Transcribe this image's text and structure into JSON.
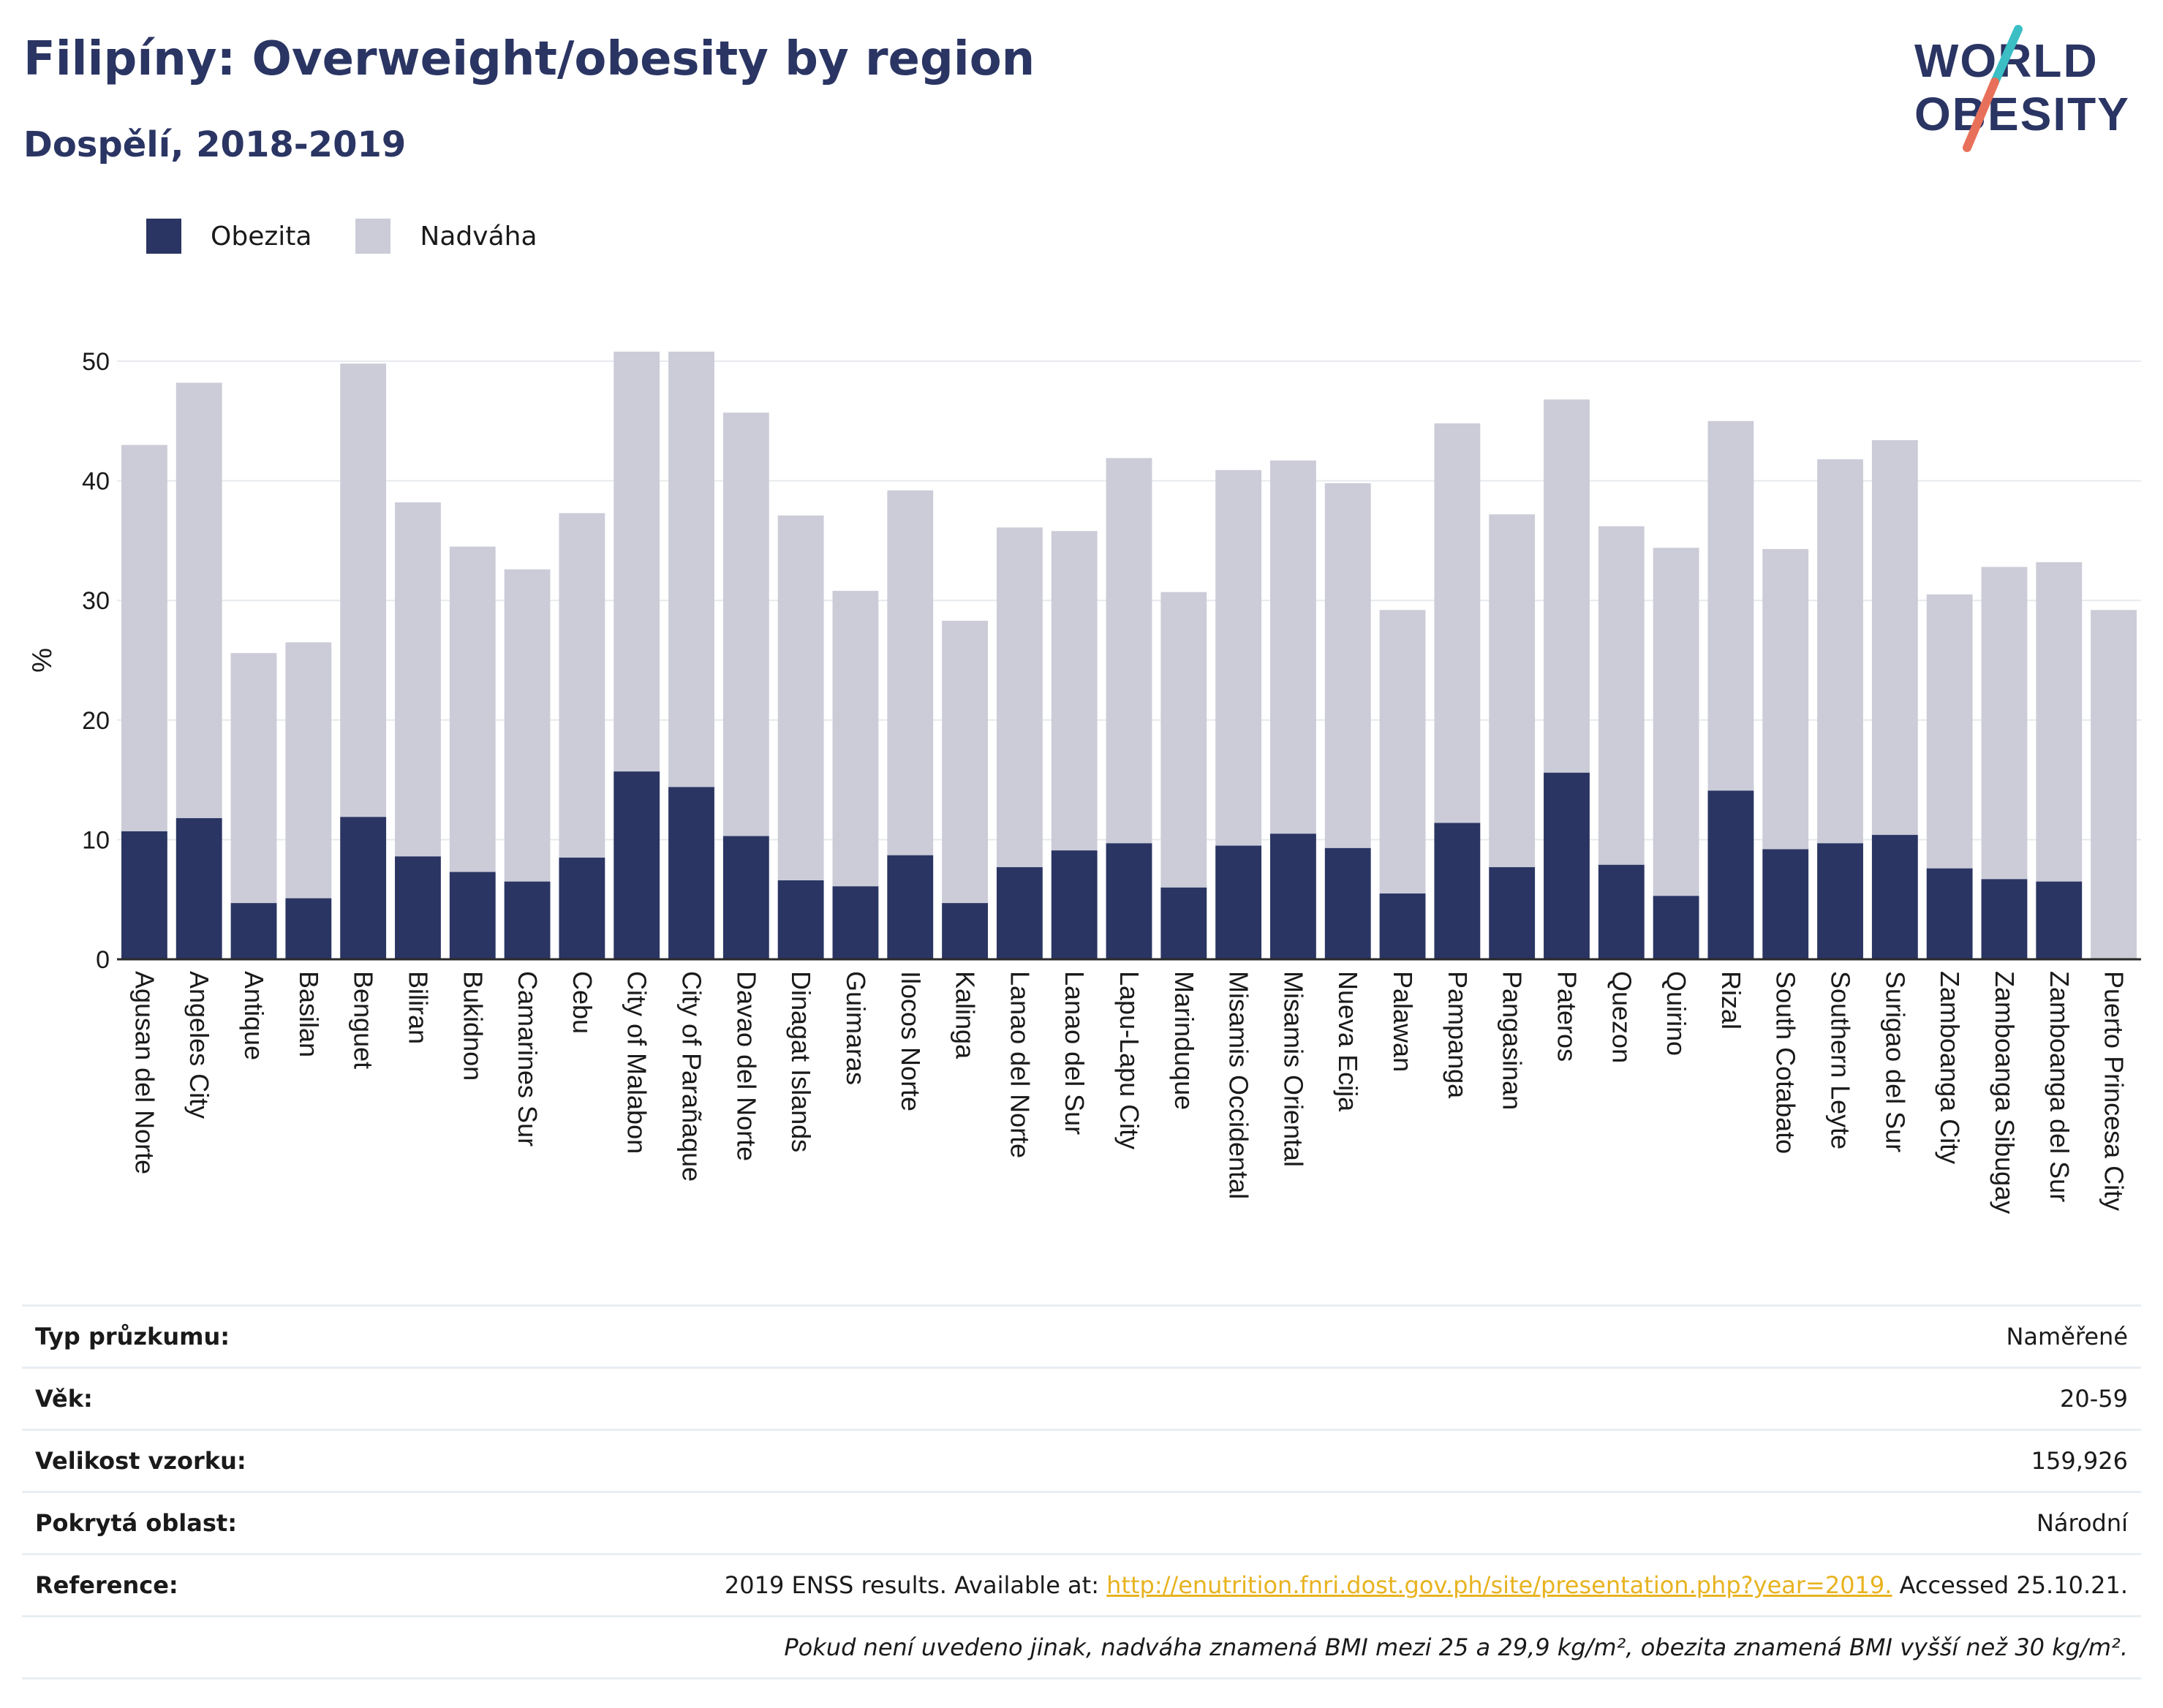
{
  "header": {
    "title": "Filipíny: Overweight/obesity by region",
    "subtitle": "Dospělí, 2018-2019"
  },
  "logo": {
    "line1": "WORLD",
    "line2": "OBESITY"
  },
  "colors": {
    "obesity": "#2a3563",
    "overweight": "#cbccd8",
    "title": "#2a3563",
    "link": "#e8b320"
  },
  "chart_data": {
    "type": "bar",
    "stacked": true,
    "ylabel": "%",
    "ylim": [
      0,
      50
    ],
    "yticks": [
      0,
      10,
      20,
      30,
      40,
      50
    ],
    "grid": true,
    "legend_position": "top-left",
    "categories": [
      "Agusan del Norte",
      "Angeles City",
      "Antique",
      "Basilan",
      "Benguet",
      "Biliran",
      "Bukidnon",
      "Camarines Sur",
      "Cebu",
      "City of Malabon",
      "City of Parañaque",
      "Davao del Norte",
      "Dinagat Islands",
      "Guimaras",
      "Ilocos Norte",
      "Kalinga",
      "Lanao del Norte",
      "Lanao del Sur",
      "Lapu-Lapu City",
      "Marinduque",
      "Misamis Occidental",
      "Misamis Oriental",
      "Nueva Ecija",
      "Palawan",
      "Pampanga",
      "Pangasinan",
      "Pateros",
      "Quezon",
      "Quirino",
      "Rizal",
      "South Cotabato",
      "Southern Leyte",
      "Surigao del Sur",
      "Zamboanga City",
      "Zamboanga Sibugay",
      "Zamboanga del Sur",
      "Puerto Princesa City"
    ],
    "series": [
      {
        "name": "Obezita",
        "values": [
          10.7,
          11.8,
          4.7,
          5.1,
          11.9,
          8.6,
          7.3,
          6.5,
          8.5,
          15.7,
          14.4,
          10.3,
          6.6,
          6.1,
          8.7,
          4.7,
          7.7,
          9.1,
          9.7,
          6.0,
          9.5,
          10.5,
          9.3,
          5.5,
          11.4,
          7.7,
          15.6,
          7.9,
          5.3,
          14.1,
          9.2,
          9.7,
          10.4,
          7.6,
          6.7,
          6.5,
          0
        ]
      },
      {
        "name": "Nadváha",
        "values": [
          32.3,
          36.4,
          20.9,
          21.4,
          37.9,
          29.6,
          27.2,
          26.1,
          28.8,
          35.1,
          36.4,
          35.4,
          30.5,
          24.7,
          30.5,
          23.6,
          28.4,
          26.7,
          32.2,
          24.7,
          31.4,
          31.2,
          30.5,
          23.7,
          33.4,
          29.5,
          31.2,
          28.3,
          29.1,
          30.9,
          25.1,
          32.1,
          33.0,
          22.9,
          26.1,
          26.7,
          29.2
        ]
      }
    ]
  },
  "info": {
    "rows": [
      {
        "label": "Typ průzkumu:",
        "value": "Naměřené"
      },
      {
        "label": "Věk:",
        "value": "20-59"
      },
      {
        "label": "Velikost vzorku:",
        "value": "159,926"
      },
      {
        "label": "Pokrytá oblast:",
        "value": "Národní"
      }
    ],
    "reference": {
      "label": "Reference:",
      "prefix": "2019 ENSS results. Available at: ",
      "link": "http://enutrition.fnri.dost.gov.ph/site/presentation.php?year=2019.",
      "suffix": " Accessed 25.10.21."
    },
    "note": "Pokud není uvedeno jinak, nadváha znamená BMI mezi 25 a 29,9 kg/m², obezita znamená BMI vyšší než 30 kg/m²."
  }
}
